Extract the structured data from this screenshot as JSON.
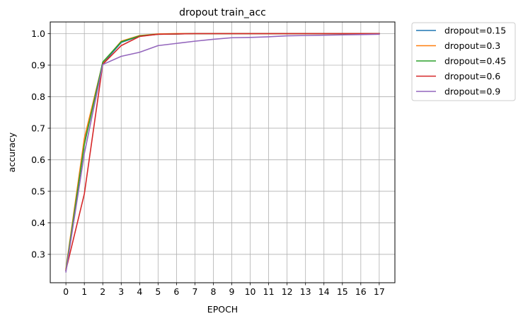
{
  "chart_data": {
    "type": "line",
    "title": "dropout train_acc",
    "xlabel": "EPOCH",
    "ylabel": "accuracy",
    "x": [
      0,
      1,
      2,
      3,
      4,
      5,
      6,
      7,
      8,
      9,
      10,
      11,
      12,
      13,
      14,
      15,
      16,
      17
    ],
    "xticks": [
      "0",
      "1",
      "2",
      "3",
      "4",
      "5",
      "6",
      "7",
      "8",
      "9",
      "10",
      "11",
      "12",
      "13",
      "14",
      "15",
      "16",
      "17"
    ],
    "yticks": [
      "0.3",
      "0.4",
      "0.5",
      "0.6",
      "0.7",
      "0.8",
      "0.9",
      "1.0"
    ],
    "ytick_values": [
      0.3,
      0.4,
      0.5,
      0.6,
      0.7,
      0.8,
      0.9,
      1.0
    ],
    "xlim": [
      -0.85,
      17.85
    ],
    "ylim": [
      0.21,
      1.037
    ],
    "grid": true,
    "legend_position": "outside-top-right",
    "series": [
      {
        "name": "dropout=0.15",
        "color": "#1f77b4",
        "values": [
          0.248,
          0.66,
          0.905,
          0.972,
          0.992,
          0.998,
          0.999,
          1.0,
          1.0,
          1.0,
          1.0,
          1.0,
          1.0,
          1.0,
          1.0,
          1.0,
          1.0,
          1.0
        ]
      },
      {
        "name": "dropout=0.3",
        "color": "#ff7f0e",
        "values": [
          0.254,
          0.668,
          0.908,
          0.976,
          0.994,
          0.999,
          1.0,
          1.0,
          1.0,
          1.0,
          1.0,
          1.0,
          1.0,
          1.0,
          1.0,
          1.0,
          1.0,
          1.0
        ]
      },
      {
        "name": "dropout=0.45",
        "color": "#2ca02c",
        "values": [
          0.25,
          0.648,
          0.91,
          0.974,
          0.993,
          0.998,
          0.999,
          1.0,
          1.0,
          1.0,
          1.0,
          1.0,
          1.0,
          1.0,
          1.0,
          1.0,
          1.0,
          1.0
        ]
      },
      {
        "name": "dropout=0.6",
        "color": "#d62728",
        "values": [
          0.25,
          0.492,
          0.903,
          0.962,
          0.991,
          0.998,
          0.999,
          1.0,
          1.0,
          1.0,
          1.0,
          1.0,
          1.0,
          1.0,
          1.0,
          1.0,
          1.0,
          1.0
        ]
      },
      {
        "name": "dropout=0.9",
        "color": "#9467bd",
        "values": [
          0.244,
          0.62,
          0.902,
          0.928,
          0.941,
          0.962,
          0.969,
          0.976,
          0.982,
          0.987,
          0.988,
          0.99,
          0.993,
          0.994,
          0.995,
          0.996,
          0.997,
          0.998
        ]
      }
    ]
  }
}
